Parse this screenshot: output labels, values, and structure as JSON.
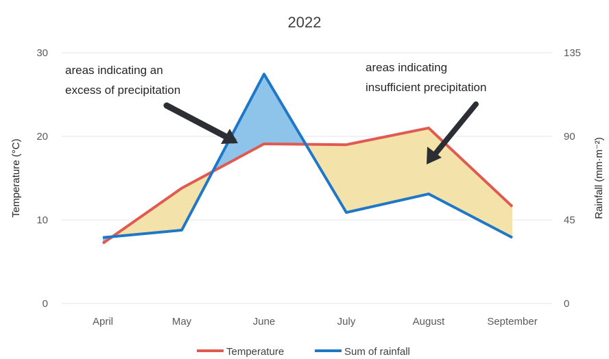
{
  "chart_data": {
    "type": "line",
    "title": "2022",
    "categories": [
      "April",
      "May",
      "June",
      "July",
      "August",
      "September"
    ],
    "series": [
      {
        "name": "Temperature",
        "axis": "left",
        "color": "#e05a52",
        "values": [
          7.2,
          13.8,
          19.1,
          19.0,
          21.0,
          11.6
        ]
      },
      {
        "name": "Sum of rainfall",
        "axis": "right",
        "color": "#1f77c8",
        "values": [
          35.5,
          39.5,
          123.5,
          49.0,
          59.0,
          35.5
        ]
      }
    ],
    "y_left": {
      "label": "Temperature (°C)",
      "range": [
        0,
        30
      ],
      "ticks": [
        "0",
        "10",
        "20",
        "30"
      ]
    },
    "y_right": {
      "label": "Rainfall (mm·m⁻²)",
      "range": [
        0,
        135
      ],
      "ticks": [
        "0",
        "45",
        "90",
        "135"
      ]
    },
    "fills": {
      "excess": "#8ec3ea",
      "insufficient": "#f3e3ab"
    },
    "annotations": [
      {
        "lines": [
          "areas indicating an",
          "excess of precipitation"
        ]
      },
      {
        "lines": [
          "areas indicating",
          "insufficient precipitation"
        ]
      }
    ],
    "grid": true,
    "legend_position": "bottom"
  }
}
